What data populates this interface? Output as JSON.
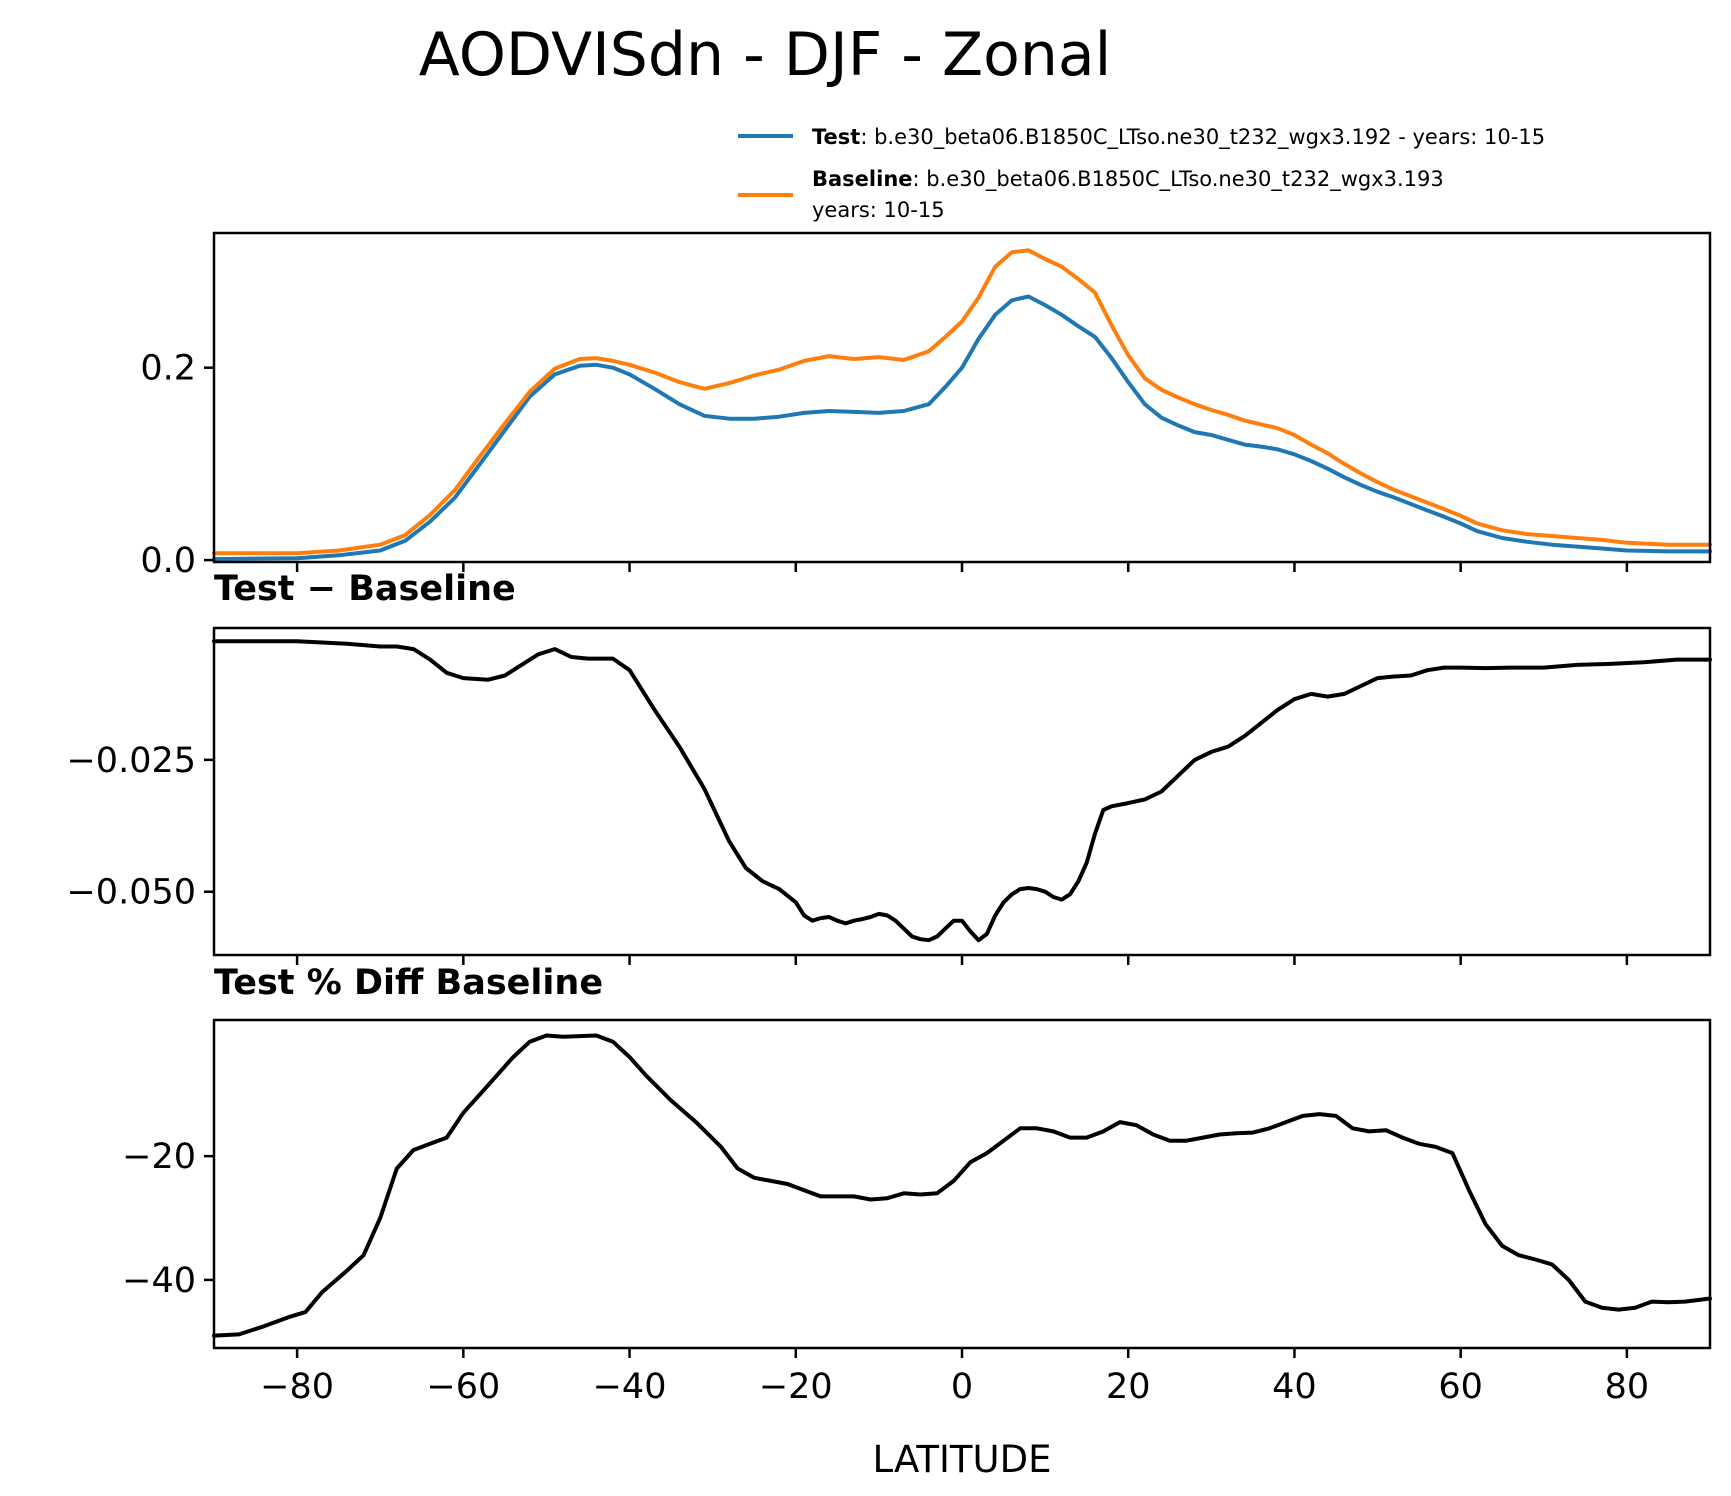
{
  "chart_data": {
    "type": "line",
    "title": "AODVISdn - DJF - Zonal",
    "xlabel": "LATITUDE",
    "xlim": [
      -90,
      90
    ],
    "xticks": [
      -80,
      -60,
      -40,
      -20,
      0,
      20,
      40,
      60,
      80
    ],
    "xtick_labels": [
      "−80",
      "−60",
      "−40",
      "−20",
      "0",
      "20",
      "40",
      "60",
      "80"
    ],
    "legend": {
      "placement": "top-right",
      "entries": [
        {
          "bold": "Test",
          "line1": ": b.e30_beta06.B1850C_LTso.ne30_t232_wgx3.192 - years: 10-15",
          "line2": "",
          "color": "#1f77b4"
        },
        {
          "bold": "Baseline",
          "line1": ": b.e30_beta06.B1850C_LTso.ne30_t232_wgx3.193",
          "line2": "years: 10-15",
          "color": "#ff7f0e"
        }
      ]
    },
    "panels": [
      {
        "title": "",
        "ylim": [
          -0.002,
          0.34
        ],
        "yticks": [
          0.0,
          0.2
        ],
        "ytick_labels": [
          "0.0",
          "0.2"
        ],
        "series": [
          {
            "name": "Test",
            "color": "#1f77b4",
            "x": [
              -90,
              -80,
              -75,
              -70,
              -67,
              -64,
              -61,
              -58,
              -55,
              -52,
              -49,
              -46,
              -44,
              -42,
              -40,
              -37,
              -34,
              -31,
              -28,
              -25,
              -22,
              -19,
              -16,
              -13,
              -10,
              -7,
              -4,
              -2,
              0,
              2,
              4,
              6,
              8,
              10,
              12,
              14,
              16,
              18,
              20,
              22,
              24,
              26,
              28,
              30,
              32,
              34,
              36,
              38,
              40,
              42,
              44,
              46,
              48,
              50,
              52,
              55,
              58,
              60,
              62,
              65,
              68,
              71,
              74,
              77,
              80,
              85,
              90
            ],
            "y": [
              0.001,
              0.002,
              0.005,
              0.01,
              0.02,
              0.04,
              0.065,
              0.1,
              0.135,
              0.17,
              0.193,
              0.202,
              0.203,
              0.2,
              0.193,
              0.178,
              0.162,
              0.15,
              0.147,
              0.147,
              0.149,
              0.153,
              0.155,
              0.154,
              0.153,
              0.155,
              0.162,
              0.18,
              0.2,
              0.23,
              0.255,
              0.27,
              0.274,
              0.265,
              0.255,
              0.243,
              0.232,
              0.21,
              0.185,
              0.162,
              0.148,
              0.14,
              0.133,
              0.13,
              0.125,
              0.12,
              0.118,
              0.115,
              0.11,
              0.103,
              0.095,
              0.086,
              0.078,
              0.071,
              0.065,
              0.055,
              0.045,
              0.038,
              0.03,
              0.023,
              0.019,
              0.016,
              0.014,
              0.012,
              0.01,
              0.009,
              0.009
            ]
          },
          {
            "name": "Baseline",
            "color": "#ff7f0e",
            "x": [
              -90,
              -80,
              -75,
              -70,
              -67,
              -64,
              -61,
              -58,
              -55,
              -52,
              -49,
              -46,
              -44,
              -42,
              -40,
              -37,
              -34,
              -31,
              -28,
              -25,
              -22,
              -19,
              -16,
              -13,
              -10,
              -7,
              -4,
              -2,
              0,
              2,
              4,
              6,
              8,
              10,
              12,
              14,
              16,
              18,
              20,
              22,
              24,
              26,
              28,
              30,
              32,
              34,
              36,
              38,
              40,
              42,
              44,
              46,
              48,
              50,
              52,
              55,
              58,
              60,
              62,
              65,
              68,
              71,
              74,
              77,
              80,
              85,
              90
            ],
            "y": [
              0.007,
              0.007,
              0.01,
              0.016,
              0.026,
              0.047,
              0.073,
              0.108,
              0.142,
              0.175,
              0.199,
              0.209,
              0.21,
              0.207,
              0.203,
              0.195,
              0.185,
              0.178,
              0.184,
              0.192,
              0.198,
              0.207,
              0.212,
              0.209,
              0.211,
              0.208,
              0.217,
              0.232,
              0.248,
              0.273,
              0.305,
              0.32,
              0.322,
              0.313,
              0.305,
              0.292,
              0.278,
              0.244,
              0.213,
              0.189,
              0.177,
              0.169,
              0.162,
              0.156,
              0.151,
              0.145,
              0.141,
              0.137,
              0.13,
              0.12,
              0.111,
              0.1,
              0.09,
              0.081,
              0.073,
              0.063,
              0.053,
              0.046,
              0.038,
              0.031,
              0.027,
              0.025,
              0.023,
              0.021,
              0.018,
              0.016,
              0.016
            ]
          }
        ]
      },
      {
        "title": "Test − Baseline",
        "ylim": [
          -0.062,
          0.0
        ],
        "yticks": [
          -0.025,
          -0.05
        ],
        "ytick_labels": [
          "−0.025",
          "−0.050"
        ],
        "series": [
          {
            "name": "Test − Baseline",
            "color": "#000000",
            "x": [
              -90,
              -80,
              -74,
              -70,
              -68,
              -66,
              -64,
              -62,
              -60,
              -57,
              -55,
              -53,
              -51,
              -49,
              -47,
              -45,
              -44,
              -42,
              -40,
              -37,
              -34,
              -31,
              -28,
              -26,
              -24,
              -22,
              -20,
              -19,
              -18,
              -17,
              -16,
              -15,
              -14,
              -13,
              -12,
              -11,
              -10,
              -9,
              -8,
              -7,
              -6,
              -5,
              -4,
              -3,
              -2,
              -1,
              0,
              1,
              2,
              3,
              4,
              5,
              6,
              7,
              8,
              9,
              10,
              11,
              12,
              13,
              14,
              15,
              16,
              17,
              18,
              19,
              20,
              22,
              24,
              26,
              28,
              30,
              32,
              34,
              36,
              38,
              40,
              42,
              44,
              46,
              48,
              50,
              52,
              54,
              56,
              58,
              60,
              63,
              66,
              70,
              74,
              78,
              82,
              86,
              90
            ],
            "y": [
              -0.0025,
              -0.0025,
              -0.003,
              -0.0035,
              -0.0035,
              -0.004,
              -0.006,
              -0.0085,
              -0.0095,
              -0.0098,
              -0.009,
              -0.007,
              -0.005,
              -0.004,
              -0.0055,
              -0.0058,
              -0.0058,
              -0.0058,
              -0.008,
              -0.0155,
              -0.0225,
              -0.0305,
              -0.0405,
              -0.0455,
              -0.048,
              -0.0495,
              -0.052,
              -0.0545,
              -0.0555,
              -0.055,
              -0.0548,
              -0.0555,
              -0.056,
              -0.0555,
              -0.0552,
              -0.0548,
              -0.0542,
              -0.0545,
              -0.0555,
              -0.057,
              -0.0585,
              -0.059,
              -0.0592,
              -0.0585,
              -0.057,
              -0.0555,
              -0.0555,
              -0.0575,
              -0.0592,
              -0.058,
              -0.0545,
              -0.052,
              -0.0505,
              -0.0495,
              -0.0493,
              -0.0495,
              -0.05,
              -0.051,
              -0.0515,
              -0.0505,
              -0.048,
              -0.0445,
              -0.039,
              -0.0345,
              -0.0338,
              -0.0335,
              -0.0332,
              -0.0325,
              -0.031,
              -0.028,
              -0.025,
              -0.0235,
              -0.0225,
              -0.0205,
              -0.018,
              -0.0155,
              -0.0135,
              -0.0125,
              -0.013,
              -0.0125,
              -0.011,
              -0.0095,
              -0.0092,
              -0.009,
              -0.008,
              -0.0075,
              -0.0075,
              -0.0076,
              -0.0075,
              -0.0075,
              -0.007,
              -0.0068,
              -0.0065,
              -0.006,
              -0.006
            ]
          }
        ]
      },
      {
        "title": "Test % Diff Baseline",
        "ylim": [
          -51,
          2
        ],
        "yticks": [
          -20,
          -40
        ],
        "ytick_labels": [
          "−20",
          "−40"
        ],
        "series": [
          {
            "name": "Test % Diff Baseline",
            "color": "#000000",
            "x": [
              -90,
              -87,
              -84,
              -81,
              -79,
              -77,
              -74,
              -72,
              -70,
              -68,
              -66,
              -64,
              -62,
              -60,
              -58,
              -56,
              -54,
              -52,
              -50,
              -48,
              -46,
              -44,
              -42,
              -40,
              -38,
              -35,
              -32,
              -29,
              -27,
              -25,
              -23,
              -21,
              -19,
              -17,
              -15,
              -13,
              -11,
              -9,
              -7,
              -5,
              -3,
              -1,
              1,
              3,
              5,
              7,
              9,
              11,
              13,
              15,
              17,
              19,
              21,
              23,
              25,
              27,
              29,
              31,
              33,
              35,
              37,
              39,
              41,
              43,
              45,
              47,
              49,
              51,
              53,
              55,
              57,
              59,
              61,
              63,
              65,
              67,
              69,
              71,
              73,
              75,
              77,
              79,
              81,
              83,
              85,
              87,
              90
            ],
            "y": [
              -49,
              -48.8,
              -47.5,
              -46,
              -45.2,
              -42,
              -38.5,
              -36,
              -30,
              -22,
              -19,
              -18,
              -17,
              -13,
              -10,
              -7,
              -4,
              -1.5,
              -0.5,
              -0.7,
              -0.6,
              -0.5,
              -1.5,
              -4,
              -7,
              -11,
              -14.5,
              -18.5,
              -22,
              -23.5,
              -24,
              -24.5,
              -25.5,
              -26.5,
              -26.5,
              -26.5,
              -27,
              -26.8,
              -26,
              -26.2,
              -26,
              -24,
              -21,
              -19.5,
              -17.5,
              -15.5,
              -15.5,
              -16,
              -17,
              -17,
              -16,
              -14.5,
              -15,
              -16.5,
              -17.5,
              -17.5,
              -17,
              -16.5,
              -16.3,
              -16.2,
              -15.5,
              -14.5,
              -13.5,
              -13.2,
              -13.5,
              -15.5,
              -16,
              -15.8,
              -17,
              -18,
              -18.5,
              -19.5,
              -25.5,
              -31,
              -34.5,
              -36,
              -36.7,
              -37.5,
              -40,
              -43.5,
              -44.5,
              -44.8,
              -44.5,
              -43.5,
              -43.6,
              -43.5,
              -43
            ]
          }
        ]
      }
    ]
  }
}
